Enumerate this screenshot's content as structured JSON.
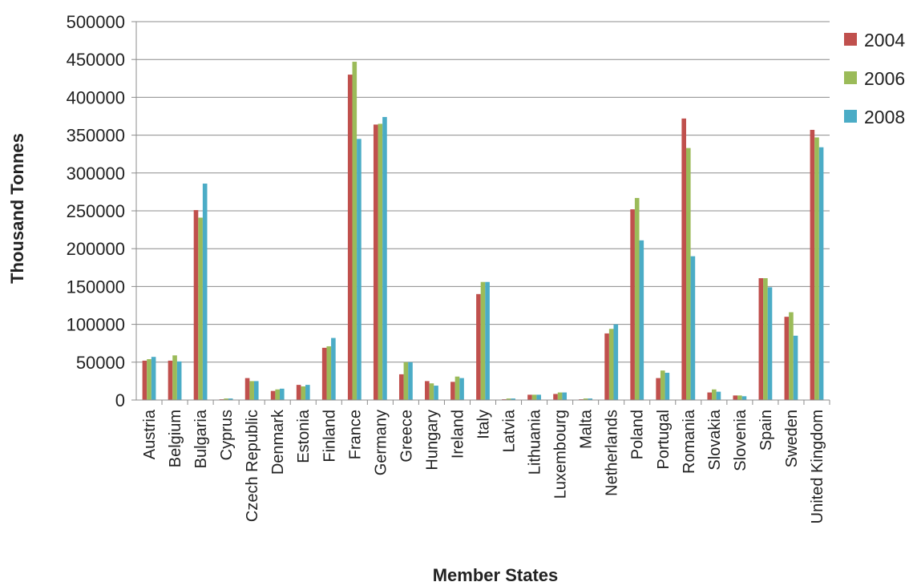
{
  "chart_data": {
    "type": "bar",
    "title": "",
    "xlabel": "Member States",
    "ylabel": "Thousand Tonnes",
    "ylim": [
      0,
      500000
    ],
    "yticks": [
      0,
      50000,
      100000,
      150000,
      200000,
      250000,
      300000,
      350000,
      400000,
      450000,
      500000
    ],
    "ytick_labels": [
      "0",
      "50000",
      "100000",
      "150000",
      "200000",
      "250000",
      "300000",
      "350000",
      "400000",
      "450000",
      "500000"
    ],
    "grid": true,
    "legend_position": "right",
    "categories": [
      "Austria",
      "Belgium",
      "Bulgaria",
      "Cyprus",
      "Czech Republic",
      "Denmark",
      "Estonia",
      "Finland",
      "France",
      "Germany",
      "Greece",
      "Hungary",
      "Ireland",
      "Italy",
      "Latvia",
      "Lithuania",
      "Luxembourg",
      "Malta",
      "Netherlands",
      "Poland",
      "Portugal",
      "Romania",
      "Slovakia",
      "Slovenia",
      "Spain",
      "Sweden",
      "United Kingdom"
    ],
    "series": [
      {
        "name": "2004",
        "color": "#c0504d",
        "values": [
          52000,
          52000,
          251000,
          1000,
          29000,
          12000,
          20000,
          69000,
          430000,
          364000,
          34000,
          25000,
          24000,
          140000,
          1000,
          7000,
          8000,
          1000,
          88000,
          252000,
          29000,
          372000,
          10000,
          6000,
          161000,
          110000,
          357000
        ]
      },
      {
        "name": "2006",
        "color": "#9bbb59",
        "values": [
          54000,
          59000,
          241000,
          2000,
          25000,
          14000,
          18000,
          71000,
          447000,
          365000,
          50000,
          22000,
          31000,
          156000,
          2000,
          7000,
          10000,
          2000,
          94000,
          267000,
          39000,
          333000,
          14000,
          6000,
          161000,
          116000,
          347000
        ]
      },
      {
        "name": "2008",
        "color": "#4bacc6",
        "values": [
          57000,
          51000,
          286000,
          2000,
          25000,
          15000,
          20000,
          82000,
          345000,
          374000,
          50000,
          19000,
          29000,
          156000,
          2000,
          7000,
          10000,
          2000,
          100000,
          211000,
          36000,
          190000,
          11000,
          5000,
          149000,
          85000,
          334000
        ]
      }
    ]
  }
}
